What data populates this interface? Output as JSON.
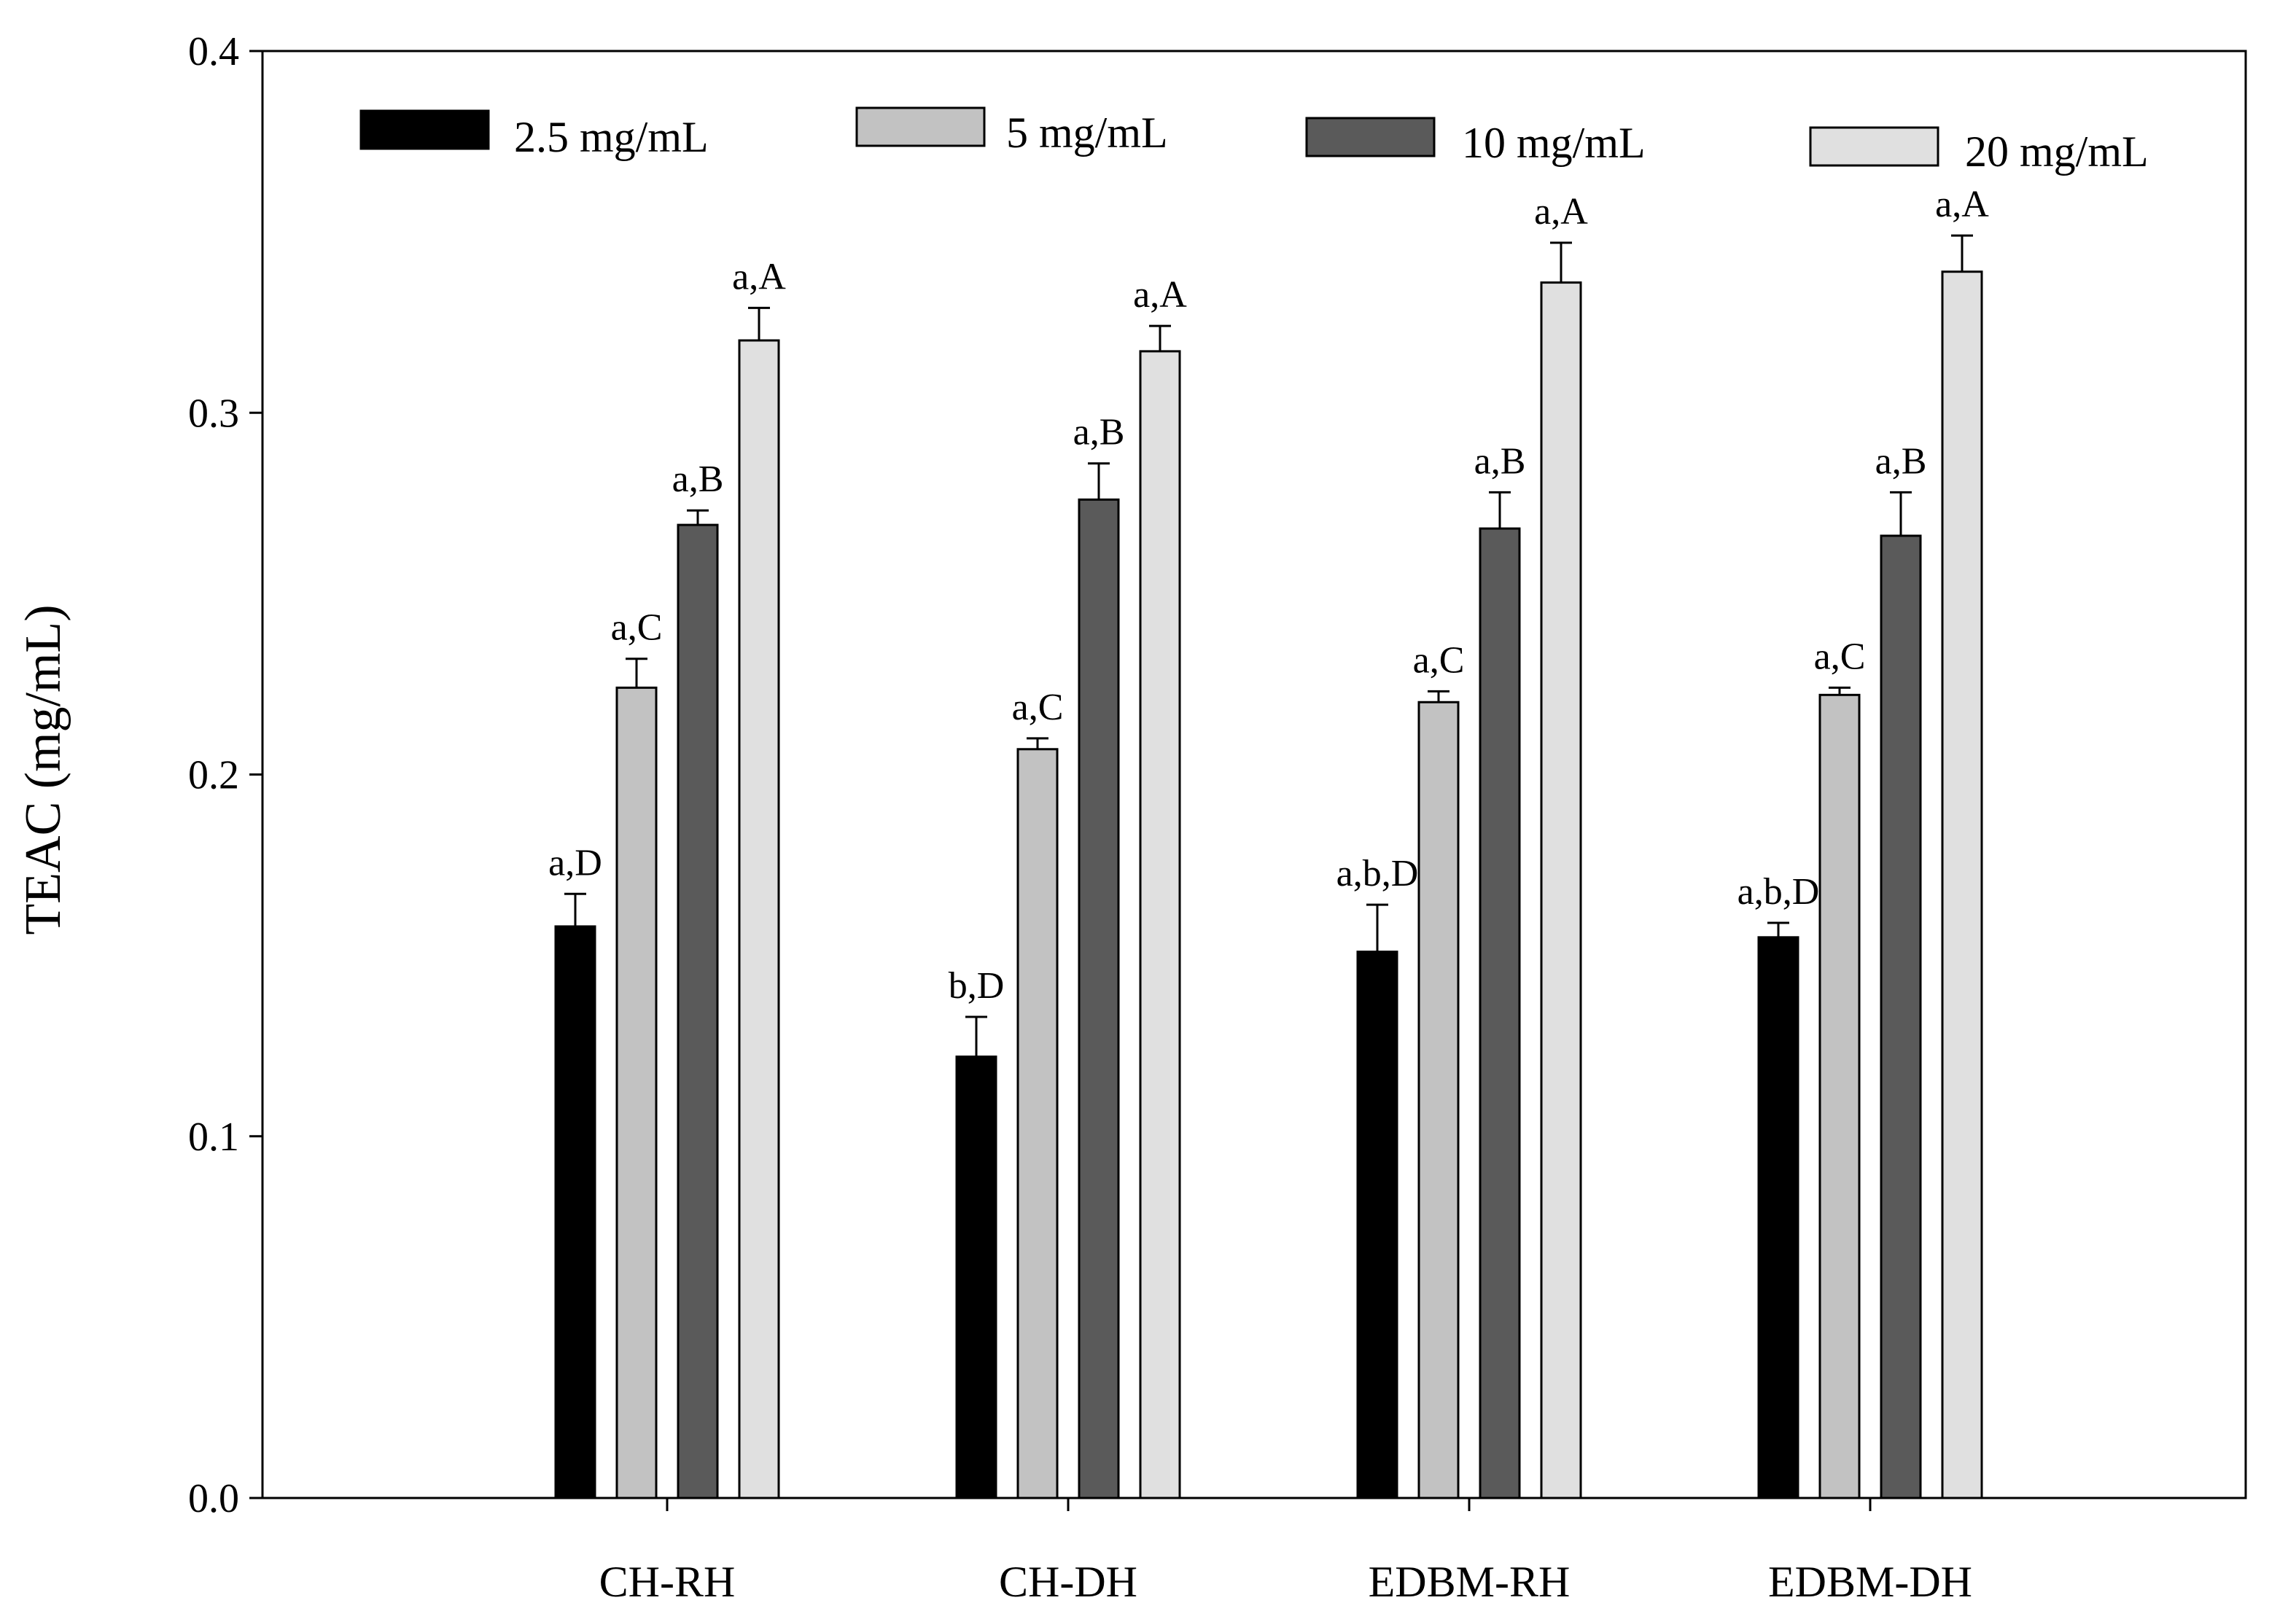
{
  "chart_data": {
    "type": "bar",
    "title": "",
    "xlabel": "",
    "ylabel": "TEAC (mg/mL)",
    "ylim": [
      0,
      0.4
    ],
    "yticks": [
      "0.0",
      "0.1",
      "0.2",
      "0.3",
      "0.4"
    ],
    "grid": false,
    "legend_position": "top",
    "categories": [
      "CH-RH",
      "CH-DH",
      "EDBM-RH",
      "EDBM-DH"
    ],
    "series": [
      {
        "name": "2.5 mg/mL",
        "color": "#000000",
        "values": [
          0.158,
          0.122,
          0.151,
          0.155
        ],
        "errors": [
          0.009,
          0.011,
          0.013,
          0.004
        ],
        "labels": [
          "a,D",
          "b,D",
          "a,b,D",
          "a,b,D"
        ]
      },
      {
        "name": "5 mg/mL",
        "color": "#c2c2c2",
        "values": [
          0.224,
          0.207,
          0.22,
          0.222
        ],
        "errors": [
          0.008,
          0.003,
          0.003,
          0.002
        ],
        "labels": [
          "a,C",
          "a,C",
          "a,C",
          "a,C"
        ]
      },
      {
        "name": "10 mg/mL",
        "color": "#5a5a5a",
        "values": [
          0.269,
          0.276,
          0.268,
          0.266
        ],
        "errors": [
          0.004,
          0.01,
          0.01,
          0.012
        ],
        "labels": [
          "a,B",
          "a,B",
          "a,B",
          "a,B"
        ]
      },
      {
        "name": "20 mg/mL",
        "color": "#e0e0e0",
        "values": [
          0.32,
          0.317,
          0.336,
          0.339
        ],
        "errors": [
          0.009,
          0.007,
          0.011,
          0.01
        ],
        "labels": [
          "a,A",
          "a,A",
          "a,A",
          "a,A"
        ]
      }
    ]
  }
}
